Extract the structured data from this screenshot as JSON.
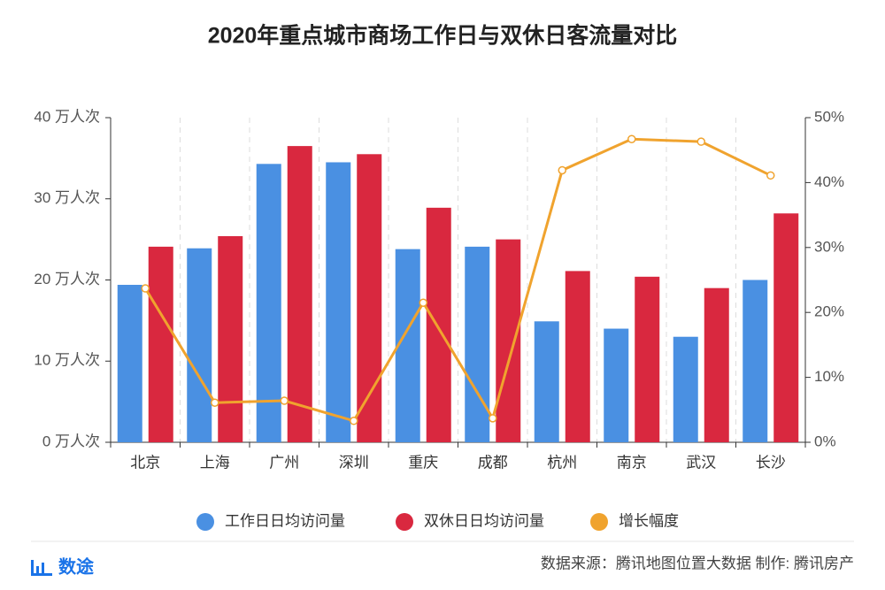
{
  "chart_data": {
    "type": "bar",
    "title": "2020年重点城市商场工作日与双休日客流量对比",
    "categories": [
      "北京",
      "上海",
      "广州",
      "深圳",
      "重庆",
      "成都",
      "杭州",
      "南京",
      "武汉",
      "长沙"
    ],
    "series": [
      {
        "name": "工作日日均访问量",
        "color": "#4a90e2",
        "type": "bar",
        "values": [
          19.4,
          23.9,
          34.3,
          34.5,
          23.8,
          24.1,
          14.9,
          14.0,
          13.0,
          20.0
        ]
      },
      {
        "name": "双休日日均访问量",
        "color": "#d9283f",
        "type": "bar",
        "values": [
          24.1,
          25.4,
          36.5,
          35.5,
          28.9,
          25.0,
          21.1,
          20.4,
          19.0,
          28.2
        ]
      },
      {
        "name": "增长幅度",
        "color": "#f0a32e",
        "type": "line",
        "axis": "y2",
        "values": [
          23.7,
          6.1,
          6.4,
          3.3,
          21.5,
          3.7,
          41.9,
          46.7,
          46.3,
          41.1
        ]
      }
    ],
    "ylim": [
      0,
      40
    ],
    "yticks": [
      {
        "value": 0,
        "label": "0 万人次"
      },
      {
        "value": 10,
        "label": "10 万人次"
      },
      {
        "value": 20,
        "label": "20 万人次"
      },
      {
        "value": 30,
        "label": "30 万人次"
      },
      {
        "value": 40,
        "label": "40 万人次"
      }
    ],
    "y2lim": [
      0,
      50
    ],
    "y2ticks": [
      {
        "value": 0,
        "label": "0%"
      },
      {
        "value": 10,
        "label": "10%"
      },
      {
        "value": 20,
        "label": "20%"
      },
      {
        "value": 30,
        "label": "30%"
      },
      {
        "value": 40,
        "label": "40%"
      },
      {
        "value": 50,
        "label": "50%"
      }
    ],
    "grid": true
  },
  "footer": {
    "brand": "数途",
    "source": "数据来源：腾讯地图位置大数据   制作: 腾讯房产"
  }
}
